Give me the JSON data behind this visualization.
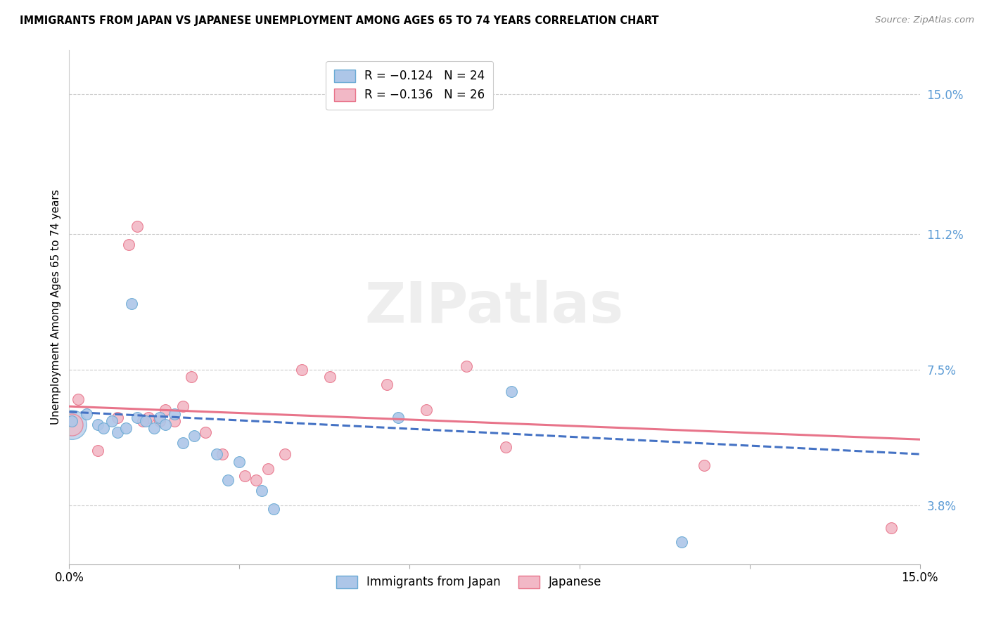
{
  "title": "IMMIGRANTS FROM JAPAN VS JAPANESE UNEMPLOYMENT AMONG AGES 65 TO 74 YEARS CORRELATION CHART",
  "source": "Source: ZipAtlas.com",
  "ylabel": "Unemployment Among Ages 65 to 74 years",
  "yticks": [
    3.8,
    7.5,
    11.2,
    15.0
  ],
  "ytick_labels": [
    "3.8%",
    "7.5%",
    "11.2%",
    "15.0%"
  ],
  "xlim": [
    0.0,
    15.0
  ],
  "ylim": [
    2.2,
    16.2
  ],
  "color_blue": "#adc6e8",
  "color_blue_dark": "#6aaad4",
  "color_pink": "#f2b8c6",
  "color_pink_dark": "#e8748a",
  "color_line_blue": "#4472c4",
  "color_line_pink": "#e8748a",
  "watermark": "ZIPatlas",
  "blue_scatter_x": [
    0.05,
    0.3,
    0.5,
    0.6,
    0.75,
    0.85,
    1.0,
    1.1,
    1.2,
    1.35,
    1.5,
    1.6,
    1.7,
    1.85,
    2.0,
    2.2,
    2.6,
    2.8,
    3.0,
    3.4,
    3.6,
    5.8,
    7.8,
    10.8
  ],
  "blue_scatter_y": [
    6.1,
    6.3,
    6.0,
    5.9,
    6.1,
    5.8,
    5.9,
    9.3,
    6.2,
    6.1,
    5.9,
    6.2,
    6.0,
    6.3,
    5.5,
    5.7,
    5.2,
    4.5,
    5.0,
    4.2,
    3.7,
    6.2,
    6.9,
    2.8
  ],
  "blue_scatter_big_x": [
    0.05
  ],
  "blue_scatter_big_y": [
    6.0
  ],
  "pink_scatter_x": [
    0.15,
    0.5,
    0.85,
    1.05,
    1.2,
    1.4,
    1.6,
    1.7,
    1.85,
    2.0,
    2.15,
    2.4,
    2.7,
    3.1,
    3.3,
    3.5,
    3.8,
    4.1,
    4.6,
    5.6,
    6.3,
    7.0,
    7.7,
    11.2,
    14.5,
    1.3
  ],
  "pink_scatter_y": [
    6.7,
    5.3,
    6.2,
    10.9,
    11.4,
    6.2,
    6.1,
    6.4,
    6.1,
    6.5,
    7.3,
    5.8,
    5.2,
    4.6,
    4.5,
    4.8,
    5.2,
    7.5,
    7.3,
    7.1,
    6.4,
    7.6,
    5.4,
    4.9,
    3.2,
    6.1
  ],
  "blue_line_start_y": 6.35,
  "blue_line_end_y": 5.2,
  "pink_line_start_y": 6.5,
  "pink_line_end_y": 5.6
}
